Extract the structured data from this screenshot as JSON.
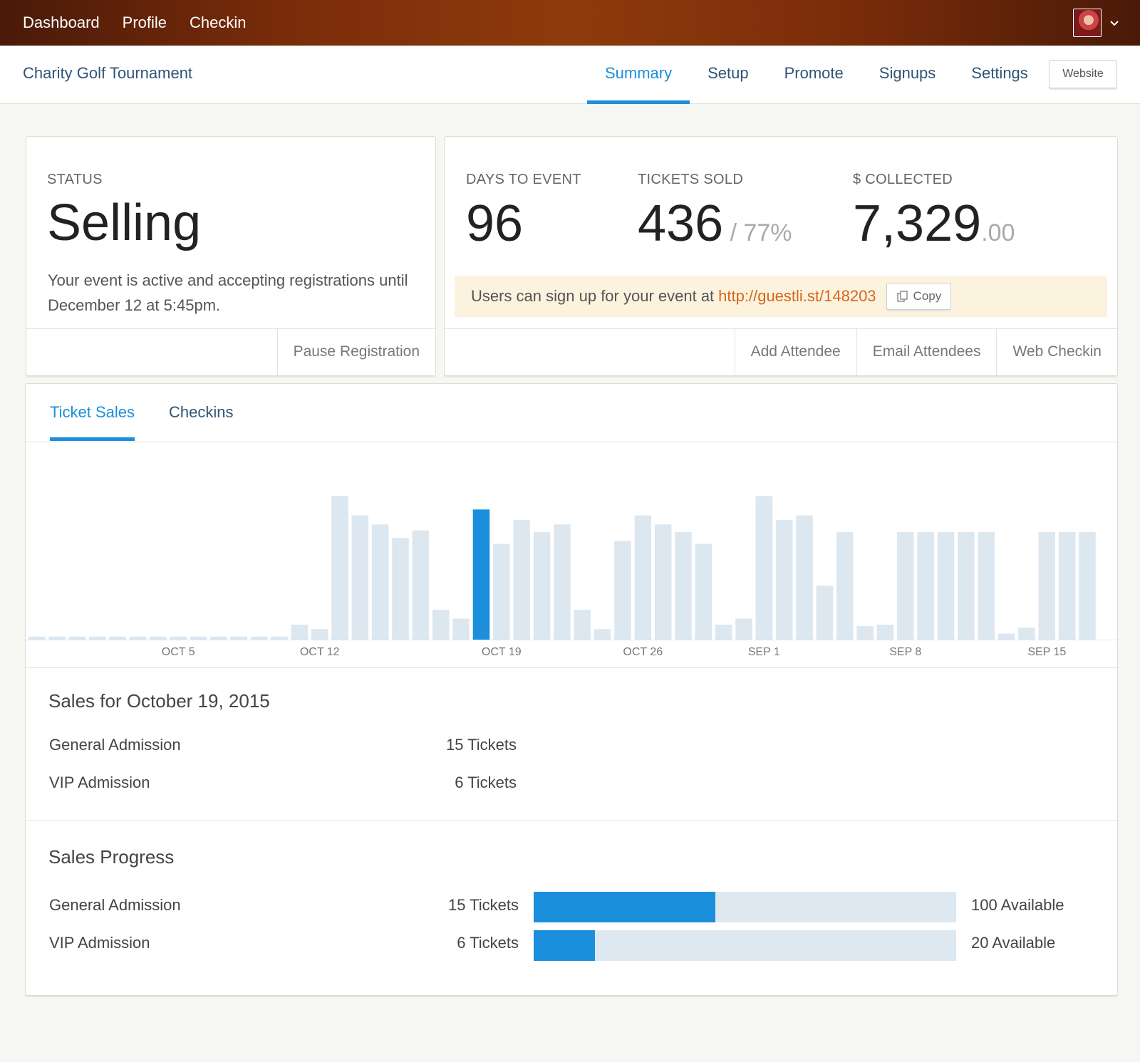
{
  "topnav": {
    "items": [
      "Dashboard",
      "Profile",
      "Checkin"
    ],
    "avatar_icon": "user-avatar",
    "dropdown_icon": "chevron-down-icon"
  },
  "subheader": {
    "event_title": "Charity Golf Tournament",
    "tabs": [
      "Summary",
      "Setup",
      "Promote",
      "Signups",
      "Settings"
    ],
    "active_tab": "Summary",
    "website_button": "Website"
  },
  "status_card": {
    "label": "STATUS",
    "value": "Selling",
    "description": "Your event is active and accepting registrations until December 12 at 5:45pm.",
    "pause_button": "Pause Registration"
  },
  "stats_card": {
    "days": {
      "label": "DAYS TO EVENT",
      "value": "96"
    },
    "tickets": {
      "label": "TICKETS SOLD",
      "value": "436",
      "sub": " / 77%"
    },
    "collected": {
      "label": "$ COLLECTED",
      "value": "7,329",
      "sub": ".00"
    },
    "banner_text": "Users can sign up for your event at",
    "banner_link": "http://guestli.st/148203",
    "copy_button": "Copy",
    "actions": [
      "Add Attendee",
      "Email Attendees",
      "Web Checkin"
    ]
  },
  "panel": {
    "tabs": [
      "Ticket Sales",
      "Checkins"
    ],
    "active_tab": "Ticket Sales"
  },
  "chart_data": {
    "type": "bar",
    "title": "",
    "xlabel": "",
    "ylabel": "",
    "grid": false,
    "legend": "none",
    "tick_labels": [
      "OCT 5",
      "OCT 12",
      "OCT 19",
      "OCT 26",
      "SEP 1",
      "SEP 8",
      "SEP 15"
    ],
    "tick_positions": [
      7,
      14,
      23,
      30,
      36,
      43,
      50
    ],
    "highlight_index": 22,
    "values": [
      2,
      2,
      2,
      2,
      2,
      2,
      2,
      2,
      2,
      2,
      2,
      2,
      2,
      10,
      7,
      96,
      83,
      77,
      68,
      73,
      20,
      14,
      87,
      64,
      80,
      72,
      77,
      20,
      7,
      66,
      83,
      77,
      72,
      64,
      10,
      14,
      96,
      80,
      83,
      36,
      72,
      9,
      10,
      72,
      72,
      72,
      72,
      72,
      4,
      8,
      72,
      72,
      72
    ],
    "colors": {
      "bar": "#dce7f0",
      "highlight": "#1b8fdc"
    }
  },
  "sales_day": {
    "title": "Sales for October 19, 2015",
    "rows": [
      {
        "label": "General Admission",
        "value": "15 Tickets"
      },
      {
        "label": "VIP Admission",
        "value": "6 Tickets"
      }
    ]
  },
  "sales_progress": {
    "title": "Sales Progress",
    "rows": [
      {
        "label": "General Admission",
        "value": "15 Tickets",
        "available": "100 Available",
        "fraction": 0.43
      },
      {
        "label": "VIP Admission",
        "value": "6 Tickets",
        "available": "20 Available",
        "fraction": 0.145
      }
    ]
  },
  "colors": {
    "accent": "#1b8fdc",
    "link": "#d9641c",
    "nav_text": "#2f5476"
  }
}
